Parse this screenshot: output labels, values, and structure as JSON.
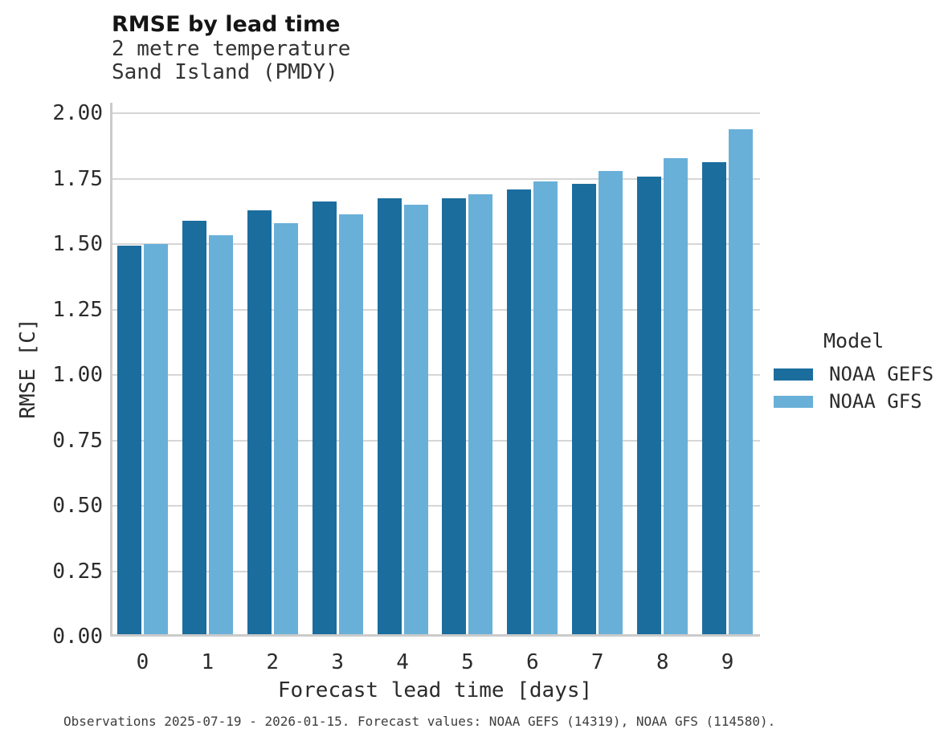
{
  "header": {
    "title": "RMSE by lead time",
    "subtitle1": "2 metre temperature",
    "subtitle2": "Sand Island (PMDY)"
  },
  "axes": {
    "xlabel": "Forecast lead time [days]",
    "ylabel": "RMSE [C]"
  },
  "legend": {
    "title": "Model",
    "entries": [
      {
        "label": "NOAA GEFS",
        "color": "#1b6d9e"
      },
      {
        "label": "NOAA GFS",
        "color": "#69b0d9"
      }
    ]
  },
  "caption": "Observations 2025-07-19 - 2026-01-15. Forecast values: NOAA GEFS (14319), NOAA GFS (114580).",
  "style_colors": {
    "gefs_bar": "#1b6d9e",
    "gfs_bar": "#69b0d9",
    "gridline": "#d6d6d6",
    "axis_spine": "#cbcbcb"
  },
  "chart_data": {
    "type": "bar",
    "title": "RMSE by lead time",
    "subtitle": "2 metre temperature — Sand Island (PMDY)",
    "categories": [
      "0",
      "1",
      "2",
      "3",
      "4",
      "5",
      "6",
      "7",
      "8",
      "9"
    ],
    "series": [
      {
        "name": "NOAA GEFS",
        "color": "#1b6d9e",
        "values": [
          1.485,
          1.58,
          1.62,
          1.655,
          1.665,
          1.665,
          1.7,
          1.72,
          1.75,
          1.805
        ]
      },
      {
        "name": "NOAA GFS",
        "color": "#69b0d9",
        "values": [
          1.49,
          1.525,
          1.57,
          1.605,
          1.64,
          1.68,
          1.73,
          1.77,
          1.82,
          1.93
        ]
      }
    ],
    "xlabel": "Forecast lead time [days]",
    "ylabel": "RMSE [C]",
    "ylim": [
      0,
      2.04
    ],
    "yticks": [
      0.0,
      0.25,
      0.5,
      0.75,
      1.0,
      1.25,
      1.5,
      1.75,
      2.0
    ],
    "ytick_format": "2dp",
    "grid": true,
    "legend_title": "Model",
    "legend_position": "right"
  }
}
